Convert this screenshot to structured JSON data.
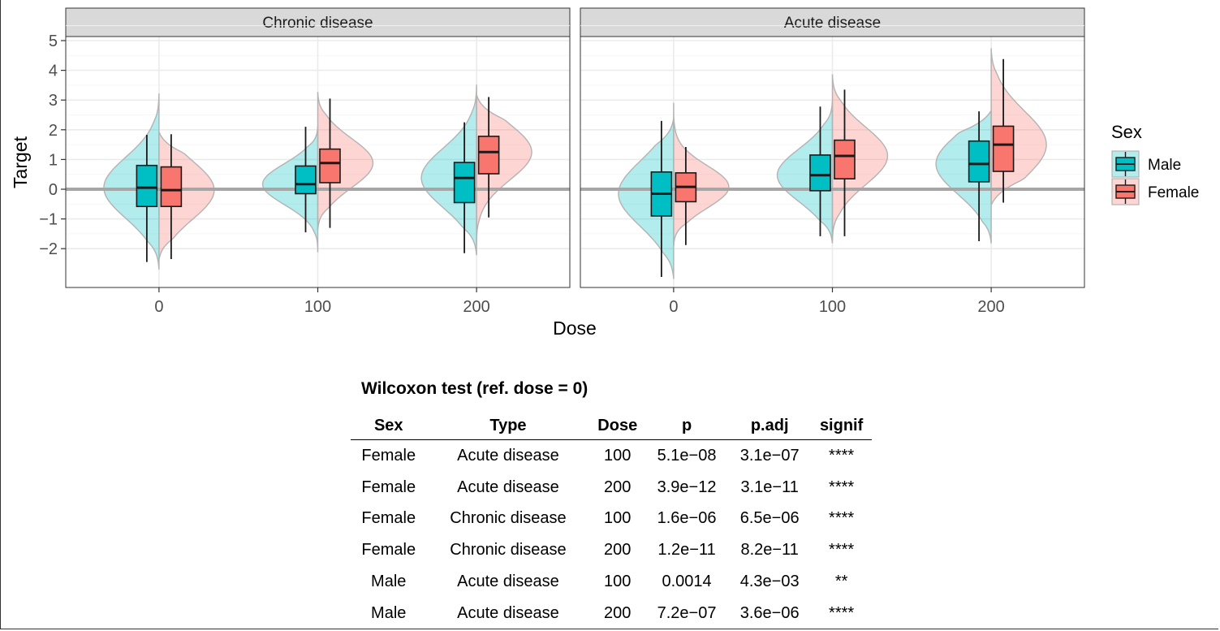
{
  "colors": {
    "male": "#00BFC4",
    "female": "#F8766D",
    "panel_strip": "#D9D9D9",
    "grid": "#EBEBEB",
    "zero_line": "#A6A6A6"
  },
  "chart_data": {
    "type": "violin-box",
    "xlabel": "Dose",
    "ylabel": "Target",
    "ylim": [
      -3.3,
      5.2
    ],
    "yticks": [
      -2,
      -1,
      0,
      1,
      2,
      3,
      4,
      5
    ],
    "ytick_labels": [
      "−2",
      "−1",
      "0",
      "1",
      "2",
      "3",
      "4",
      "5"
    ],
    "x_categories": [
      "0",
      "100",
      "200"
    ],
    "grid": true,
    "reference_line_y": 0,
    "legend": {
      "title": "Sex",
      "position": "right",
      "entries": [
        "Male",
        "Female"
      ]
    },
    "panels": [
      {
        "title": "Chronic disease",
        "groups": [
          {
            "dose": "0",
            "sex": "Male",
            "min": -2.45,
            "q1": -0.58,
            "median": 0.05,
            "q3": 0.8,
            "max": 1.83,
            "violin_min": -2.68,
            "violin_max": 3.22
          },
          {
            "dose": "0",
            "sex": "Female",
            "min": -2.35,
            "q1": -0.58,
            "median": -0.03,
            "q3": 0.75,
            "max": 1.85,
            "violin_min": -2.35,
            "violin_max": 1.9
          },
          {
            "dose": "100",
            "sex": "Male",
            "min": -1.45,
            "q1": -0.15,
            "median": 0.17,
            "q3": 0.78,
            "max": 2.1,
            "violin_min": -2.12,
            "violin_max": 2.1
          },
          {
            "dose": "100",
            "sex": "Female",
            "min": -1.3,
            "q1": 0.22,
            "median": 0.88,
            "q3": 1.35,
            "max": 3.05,
            "violin_min": -1.35,
            "violin_max": 3.25
          },
          {
            "dose": "200",
            "sex": "Male",
            "min": -2.15,
            "q1": -0.45,
            "median": 0.38,
            "q3": 0.9,
            "max": 2.25,
            "violin_min": -2.2,
            "violin_max": 3.5
          },
          {
            "dose": "200",
            "sex": "Female",
            "min": -0.95,
            "q1": 0.52,
            "median": 1.25,
            "q3": 1.78,
            "max": 3.1,
            "violin_min": -1.85,
            "violin_max": 3.15
          }
        ]
      },
      {
        "title": "Acute disease",
        "groups": [
          {
            "dose": "0",
            "sex": "Male",
            "min": -2.95,
            "q1": -0.9,
            "median": -0.15,
            "q3": 0.58,
            "max": 2.3,
            "violin_min": -3.0,
            "violin_max": 2.35
          },
          {
            "dose": "0",
            "sex": "Female",
            "min": -1.88,
            "q1": -0.42,
            "median": 0.08,
            "q3": 0.55,
            "max": 1.42,
            "violin_min": -1.9,
            "violin_max": 2.88
          },
          {
            "dose": "100",
            "sex": "Male",
            "min": -1.58,
            "q1": -0.05,
            "median": 0.47,
            "q3": 1.15,
            "max": 2.78,
            "violin_min": -1.8,
            "violin_max": 2.95
          },
          {
            "dose": "100",
            "sex": "Female",
            "min": -1.58,
            "q1": 0.35,
            "median": 1.12,
            "q3": 1.65,
            "max": 3.35,
            "violin_min": -1.72,
            "violin_max": 3.85
          },
          {
            "dose": "200",
            "sex": "Male",
            "min": -1.75,
            "q1": 0.25,
            "median": 0.85,
            "q3": 1.62,
            "max": 2.62,
            "violin_min": -1.8,
            "violin_max": 2.62
          },
          {
            "dose": "200",
            "sex": "Female",
            "min": -0.45,
            "q1": 0.6,
            "median": 1.5,
            "q3": 2.12,
            "max": 4.38,
            "violin_min": -0.5,
            "violin_max": 4.72
          }
        ]
      }
    ]
  },
  "table": {
    "title": "Wilcoxon test (ref. dose = 0)",
    "headers": [
      "Sex",
      "Type",
      "Dose",
      "p",
      "p.adj",
      "signif"
    ],
    "rows": [
      [
        "Female",
        "Acute disease",
        "100",
        "5.1e−08",
        "3.1e−07",
        "****"
      ],
      [
        "Female",
        "Acute disease",
        "200",
        "3.9e−12",
        "3.1e−11",
        "****"
      ],
      [
        "Female",
        "Chronic disease",
        "100",
        "1.6e−06",
        "6.5e−06",
        "****"
      ],
      [
        "Female",
        "Chronic disease",
        "200",
        "1.2e−11",
        "8.2e−11",
        "****"
      ],
      [
        "Male",
        "Acute disease",
        "100",
        "0.0014",
        "4.3e−03",
        "**"
      ],
      [
        "Male",
        "Acute disease",
        "200",
        "7.2e−07",
        "3.6e−06",
        "****"
      ]
    ]
  }
}
